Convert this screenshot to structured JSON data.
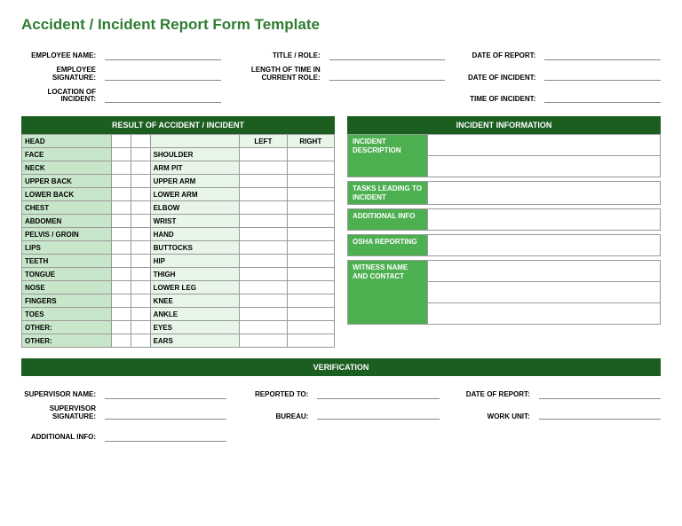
{
  "title": "Accident / Incident Report Form Template",
  "colors": {
    "title": "#2e7d32",
    "header_bg": "#1b5e20",
    "cell_green_light": "#c8e6c9",
    "cell_green_lighter": "#e8f5e9",
    "info_label_bg": "#4caf50",
    "border": "#999999"
  },
  "header": {
    "employee_name": "EMPLOYEE NAME:",
    "title_role": "TITLE / ROLE:",
    "date_of_report": "DATE OF REPORT:",
    "employee_signature": "EMPLOYEE SIGNATURE:",
    "length_of_time": "LENGTH OF TIME IN CURRENT ROLE:",
    "date_of_incident": "DATE OF INCIDENT:",
    "location_of_incident": "LOCATION OF INCIDENT:",
    "time_of_incident": "TIME OF INCIDENT:"
  },
  "result_header": "RESULT OF ACCIDENT / INCIDENT",
  "body_left_header": {
    "left": "LEFT",
    "right": "RIGHT"
  },
  "body_left": [
    "HEAD",
    "FACE",
    "NECK",
    "UPPER BACK",
    "LOWER BACK",
    "CHEST",
    "ABDOMEN",
    "PELVIS / GROIN",
    "LIPS",
    "TEETH",
    "TONGUE",
    "NOSE",
    "FINGERS",
    "TOES",
    "OTHER:",
    "OTHER:"
  ],
  "body_right": [
    "",
    "SHOULDER",
    "ARM PIT",
    "UPPER ARM",
    "LOWER ARM",
    "ELBOW",
    "WRIST",
    "HAND",
    "BUTTOCKS",
    "HIP",
    "THIGH",
    "LOWER LEG",
    "KNEE",
    "ANKLE",
    "EYES",
    "EARS"
  ],
  "info_header": "INCIDENT INFORMATION",
  "info_rows": [
    {
      "label": "INCIDENT DESCRIPTION",
      "rows": 2
    },
    {
      "label": "TASKS LEADING TO INCIDENT",
      "rows": 1
    },
    {
      "label": "ADDITIONAL INFO",
      "rows": 1
    },
    {
      "label": "OSHA REPORTING",
      "rows": 1
    },
    {
      "label": "WITNESS NAME AND CONTACT",
      "rows": 3
    }
  ],
  "verification": "VERIFICATION",
  "footer": {
    "supervisor_name": "SUPERVISOR NAME:",
    "reported_to": "REPORTED TO:",
    "date_of_report": "DATE OF REPORT:",
    "supervisor_signature": "SUPERVISOR SIGNATURE:",
    "bureau": "BUREAU:",
    "work_unit": "WORK UNIT:",
    "additional_info": "ADDITIONAL INFO:"
  }
}
